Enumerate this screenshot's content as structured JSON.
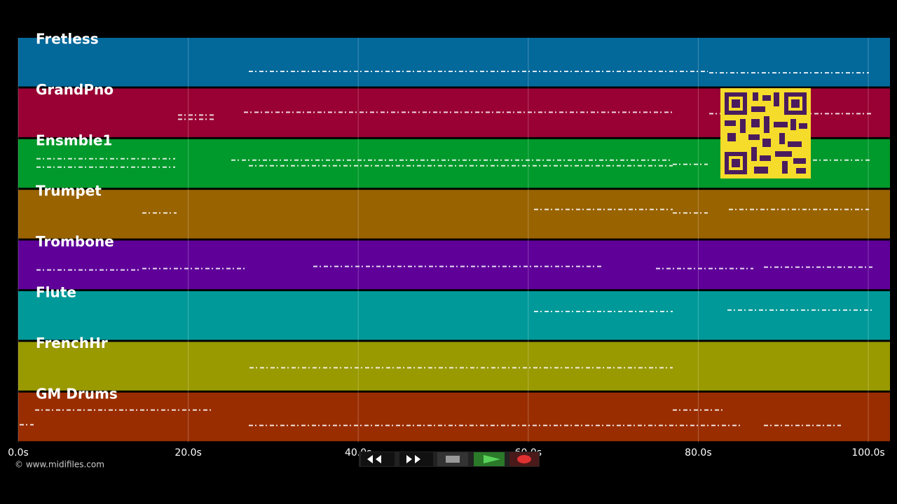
{
  "tracks": [
    {
      "name": "Fretless",
      "color": "#03689a"
    },
    {
      "name": "GrandPno",
      "color": "#990033"
    },
    {
      "name": "Ensmble1",
      "color": "#00992b"
    },
    {
      "name": "Trumpet",
      "color": "#996300"
    },
    {
      "name": "Trombone",
      "color": "#5f0099"
    },
    {
      "name": "Flute",
      "color": "#009999"
    },
    {
      "name": "FrenchHr",
      "color": "#999900"
    },
    {
      "name": "GM Drums",
      "color": "#992d00"
    }
  ],
  "timeline": {
    "xlim": [
      0,
      100
    ],
    "xticks": [
      {
        "value": 0,
        "label": "0.0s"
      },
      {
        "value": 20,
        "label": "20.0s"
      },
      {
        "value": 40,
        "label": "40.0s"
      },
      {
        "value": 60,
        "label": "60.0s"
      },
      {
        "value": 80,
        "label": "80.0s"
      },
      {
        "value": 100,
        "label": "100.0s"
      }
    ]
  },
  "credit": "© www.midifiles.com"
}
